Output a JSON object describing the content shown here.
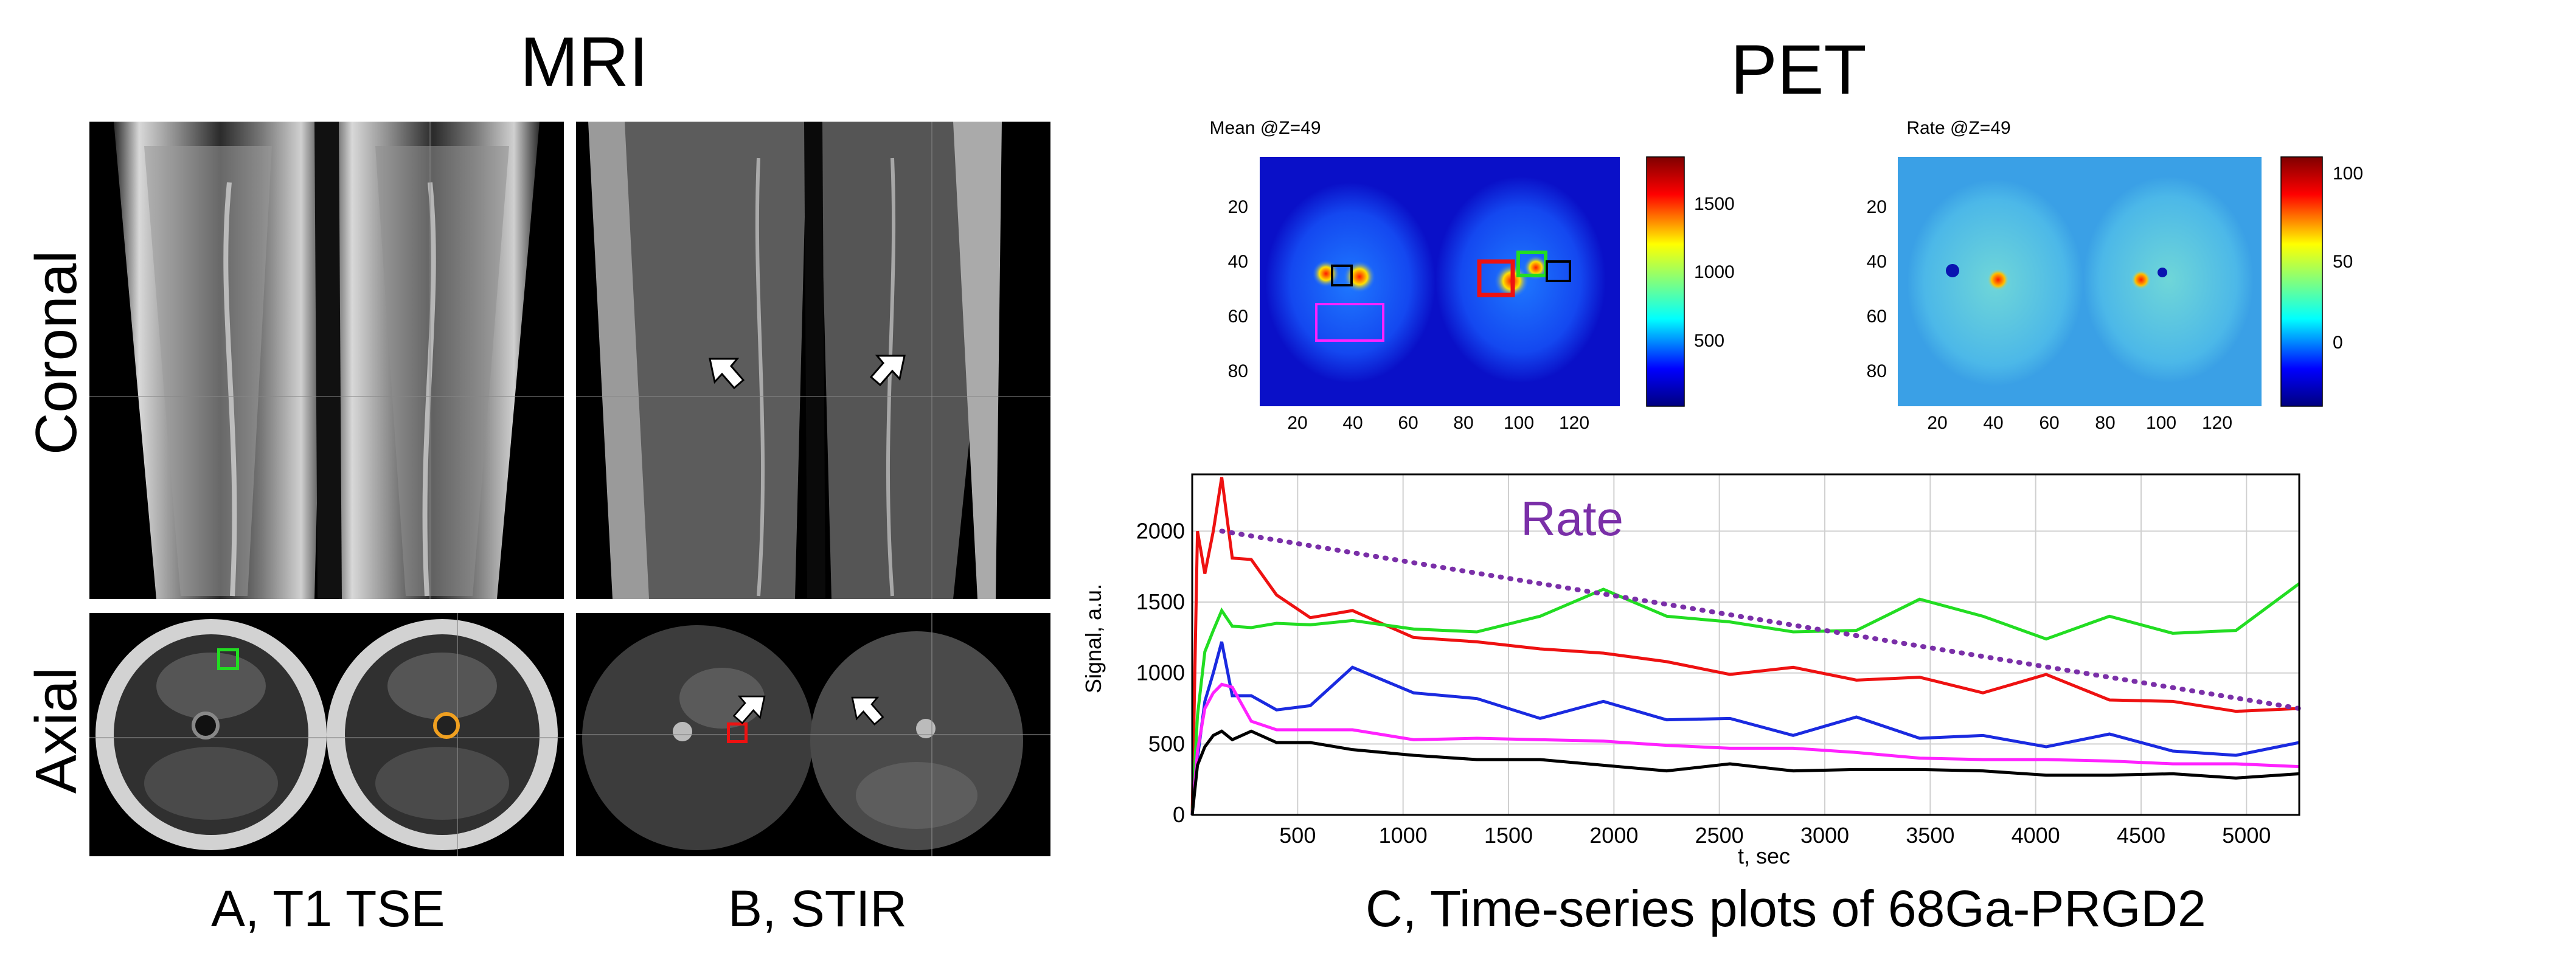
{
  "section_titles": {
    "mri": "MRI",
    "pet": "PET"
  },
  "row_labels": {
    "coronal": "Coronal",
    "axial": "Axial"
  },
  "panel_captions": {
    "a": "A, T1 TSE",
    "b": "B, STIR",
    "c": "C, Time-series plots of 68Ga-PRGD2"
  },
  "pet_maps": [
    {
      "title": "Mean @Z=49",
      "x_ticks": [
        20,
        40,
        60,
        80,
        100,
        120
      ],
      "y_ticks": [
        20,
        40,
        60,
        80
      ],
      "colorbar_ticks": [
        500,
        1000,
        1500
      ],
      "colorbar_range": [
        0,
        1850
      ],
      "colormap": "jet",
      "background_color": "#0a10c8"
    },
    {
      "title": "Rate @Z=49",
      "x_ticks": [
        20,
        40,
        60,
        80,
        100,
        120
      ],
      "y_ticks": [
        20,
        40,
        60,
        80
      ],
      "colorbar_ticks": [
        0,
        50,
        100
      ],
      "colorbar_range": [
        -50,
        115
      ],
      "colormap": "jet",
      "background_color": "#3aa0e6"
    }
  ],
  "roi_colors": {
    "green": "#22dd22",
    "red": "#ee1111",
    "blue": "#1a2ae0",
    "black": "#000000",
    "magenta": "#ff22ff",
    "orange": "#f0a020"
  },
  "chart_data": {
    "type": "line",
    "xlabel": "t, sec",
    "ylabel": "Signal, a.u.",
    "xlim": [
      0,
      5250
    ],
    "ylim": [
      0,
      2400
    ],
    "x_ticks": [
      500,
      1000,
      1500,
      2000,
      2500,
      3000,
      3500,
      4000,
      4500,
      5000
    ],
    "y_ticks": [
      0,
      500,
      1000,
      1500,
      2000
    ],
    "grid": true,
    "annotation": "Rate",
    "series": [
      {
        "color": "#ee1111",
        "x": [
          0,
          25,
          60,
          100,
          140,
          190,
          280,
          400,
          560,
          760,
          1050,
          1350,
          1650,
          1950,
          2250,
          2550,
          2850,
          3150,
          3450,
          3750,
          4050,
          4350,
          4650,
          4950,
          5250
        ],
        "y": [
          0,
          2000,
          1700,
          2000,
          2380,
          1810,
          1800,
          1550,
          1390,
          1440,
          1250,
          1220,
          1170,
          1140,
          1080,
          990,
          1040,
          950,
          970,
          860,
          990,
          810,
          800,
          730,
          750
        ]
      },
      {
        "color": "#22dd22",
        "x": [
          0,
          25,
          60,
          100,
          140,
          190,
          280,
          400,
          560,
          760,
          1050,
          1350,
          1650,
          1950,
          2250,
          2550,
          2850,
          3150,
          3450,
          3750,
          4050,
          4350,
          4650,
          4950,
          5250
        ],
        "y": [
          0,
          700,
          1150,
          1300,
          1440,
          1330,
          1320,
          1350,
          1340,
          1370,
          1310,
          1290,
          1400,
          1590,
          1400,
          1360,
          1290,
          1300,
          1520,
          1400,
          1240,
          1400,
          1280,
          1300,
          1630
        ]
      },
      {
        "color": "#1a2ae0",
        "x": [
          0,
          25,
          60,
          100,
          140,
          190,
          280,
          400,
          560,
          760,
          1050,
          1350,
          1650,
          1950,
          2250,
          2550,
          2850,
          3150,
          3450,
          3750,
          4050,
          4350,
          4650,
          4950,
          5250
        ],
        "y": [
          0,
          400,
          800,
          1000,
          1220,
          840,
          840,
          740,
          770,
          1040,
          860,
          820,
          680,
          800,
          670,
          680,
          560,
          690,
          540,
          560,
          480,
          570,
          450,
          420,
          510
        ]
      },
      {
        "color": "#ff22ff",
        "x": [
          0,
          25,
          60,
          100,
          140,
          190,
          280,
          400,
          560,
          760,
          1050,
          1350,
          1650,
          1950,
          2250,
          2550,
          2850,
          3150,
          3450,
          3750,
          4050,
          4350,
          4650,
          4950,
          5250
        ],
        "y": [
          0,
          450,
          750,
          860,
          920,
          900,
          660,
          600,
          600,
          600,
          530,
          540,
          530,
          520,
          490,
          470,
          470,
          440,
          400,
          390,
          390,
          380,
          360,
          360,
          340
        ]
      },
      {
        "color": "#000000",
        "x": [
          0,
          25,
          60,
          100,
          140,
          190,
          280,
          400,
          560,
          760,
          1050,
          1350,
          1650,
          1950,
          2250,
          2550,
          2850,
          3150,
          3450,
          3750,
          4050,
          4350,
          4650,
          4950,
          5250
        ],
        "y": [
          0,
          350,
          480,
          560,
          590,
          530,
          590,
          510,
          510,
          460,
          420,
          390,
          390,
          350,
          310,
          360,
          310,
          320,
          320,
          310,
          280,
          280,
          290,
          260,
          290
        ]
      },
      {
        "color": "#7a2fa8",
        "dotted": true,
        "x": [
          140,
          5250
        ],
        "y": [
          2000,
          750
        ]
      }
    ]
  }
}
